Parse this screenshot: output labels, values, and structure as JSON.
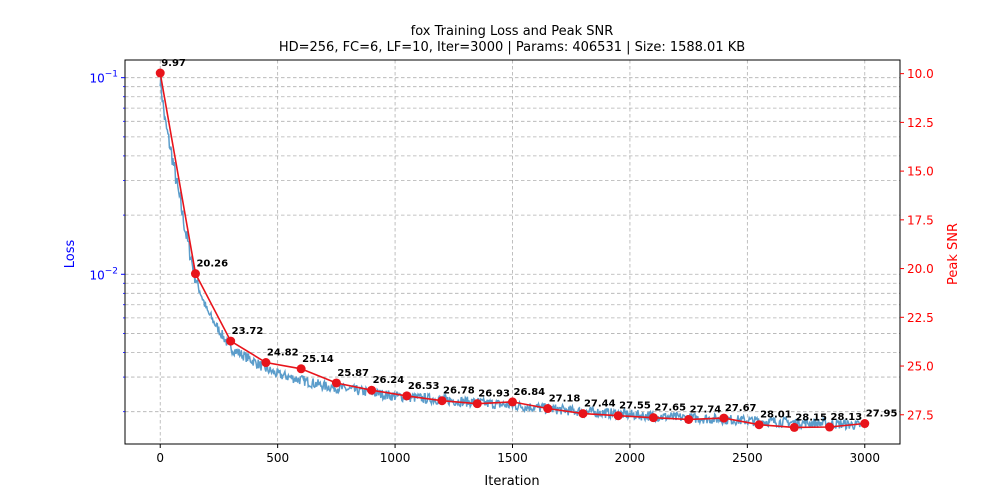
{
  "chart_data": {
    "type": "line",
    "title": "fox Training Loss and Peak SNR",
    "subtitle": "HD=256, FC=6, LF=10, Iter=3000 | Params: 406531 | Size: 1588.01 KB",
    "xlabel": "Iteration",
    "ylabel_left": "Loss",
    "ylabel_right": "Peak SNR",
    "xlim": [
      -150,
      3150
    ],
    "ylim_left": [
      0.00137,
      0.123
    ],
    "yscale_left": "log",
    "ylim_right": [
      29.0,
      9.3
    ],
    "x_ticks": [
      "0",
      "500",
      "1000",
      "1500",
      "2000",
      "2500",
      "3000"
    ],
    "y_left_ticks": [
      {
        "base": "10",
        "exp": "−1"
      },
      {
        "base": "10",
        "exp": "−2"
      }
    ],
    "y_right_ticks": [
      "10.0",
      "12.5",
      "15.0",
      "17.5",
      "20.0",
      "22.5",
      "25.0",
      "27.5"
    ],
    "grid": true,
    "colors": {
      "loss": "#5b9dcb",
      "psnr": "#e8141b",
      "left_axis": "#0000ff",
      "right_axis": "#ff0000"
    },
    "loss_series": {
      "name": "Loss",
      "x": [
        0,
        20,
        50,
        80,
        110,
        150,
        200,
        250,
        300,
        400,
        450,
        500,
        600,
        700,
        800,
        900,
        1000,
        1100,
        1200,
        1300,
        1400,
        1500,
        1600,
        1700,
        1800,
        1900,
        2000,
        2100,
        2200,
        2300,
        2400,
        2500,
        2600,
        2700,
        2800,
        2900,
        3000
      ],
      "y": [
        0.1,
        0.06,
        0.04,
        0.025,
        0.016,
        0.0095,
        0.0065,
        0.0052,
        0.0042,
        0.0036,
        0.0033,
        0.0031,
        0.0029,
        0.0027,
        0.0026,
        0.0025,
        0.0024,
        0.00235,
        0.0023,
        0.00225,
        0.0022,
        0.00215,
        0.0021,
        0.00205,
        0.002,
        0.00197,
        0.00193,
        0.0019,
        0.00187,
        0.00185,
        0.00183,
        0.0018,
        0.00178,
        0.00176,
        0.00175,
        0.00173,
        0.0017
      ]
    },
    "psnr_series": {
      "name": "Peak SNR",
      "x": [
        0,
        150,
        300,
        450,
        600,
        750,
        900,
        1050,
        1200,
        1350,
        1500,
        1650,
        1800,
        1950,
        2100,
        2250,
        2400,
        2550,
        2700,
        2850,
        3000
      ],
      "y": [
        9.97,
        20.26,
        23.72,
        24.82,
        25.14,
        25.87,
        26.24,
        26.53,
        26.78,
        26.93,
        26.84,
        27.18,
        27.44,
        27.55,
        27.65,
        27.74,
        27.67,
        28.01,
        28.15,
        28.13,
        27.95
      ],
      "labels": [
        "9.97",
        "20.26",
        "23.72",
        "24.82",
        "25.14",
        "25.87",
        "26.24",
        "26.53",
        "26.78",
        "26.93",
        "26.84",
        "27.18",
        "27.44",
        "27.55",
        "27.65",
        "27.74",
        "27.67",
        "28.01",
        "28.15",
        "28.13",
        "27.95"
      ]
    }
  }
}
